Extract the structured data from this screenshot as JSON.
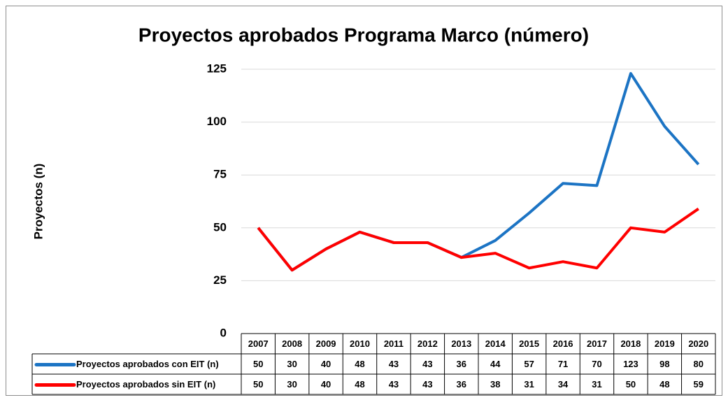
{
  "chart_data": {
    "type": "line",
    "title": "Proyectos aprobados Programa Marco (número)",
    "y_label": "Proyectos (n)",
    "categories": [
      "2007",
      "2008",
      "2009",
      "2010",
      "2011",
      "2012",
      "2013",
      "2014",
      "2015",
      "2016",
      "2017",
      "2018",
      "2019",
      "2020"
    ],
    "series": [
      {
        "name": "Proyectos aprobados con EIT (n)",
        "color": "#1c74c4",
        "values": [
          50,
          30,
          40,
          48,
          43,
          43,
          36,
          44,
          57,
          71,
          70,
          123,
          98,
          80
        ]
      },
      {
        "name": "Proyectos aprobados sin EIT (n)",
        "color": "#ff0000",
        "values": [
          50,
          30,
          40,
          48,
          43,
          43,
          36,
          38,
          31,
          34,
          31,
          50,
          48,
          59
        ]
      }
    ],
    "ylim": [
      0,
      125
    ],
    "yticks": [
      0,
      25,
      50,
      75,
      100,
      125
    ],
    "grid": true,
    "data_table": true
  }
}
